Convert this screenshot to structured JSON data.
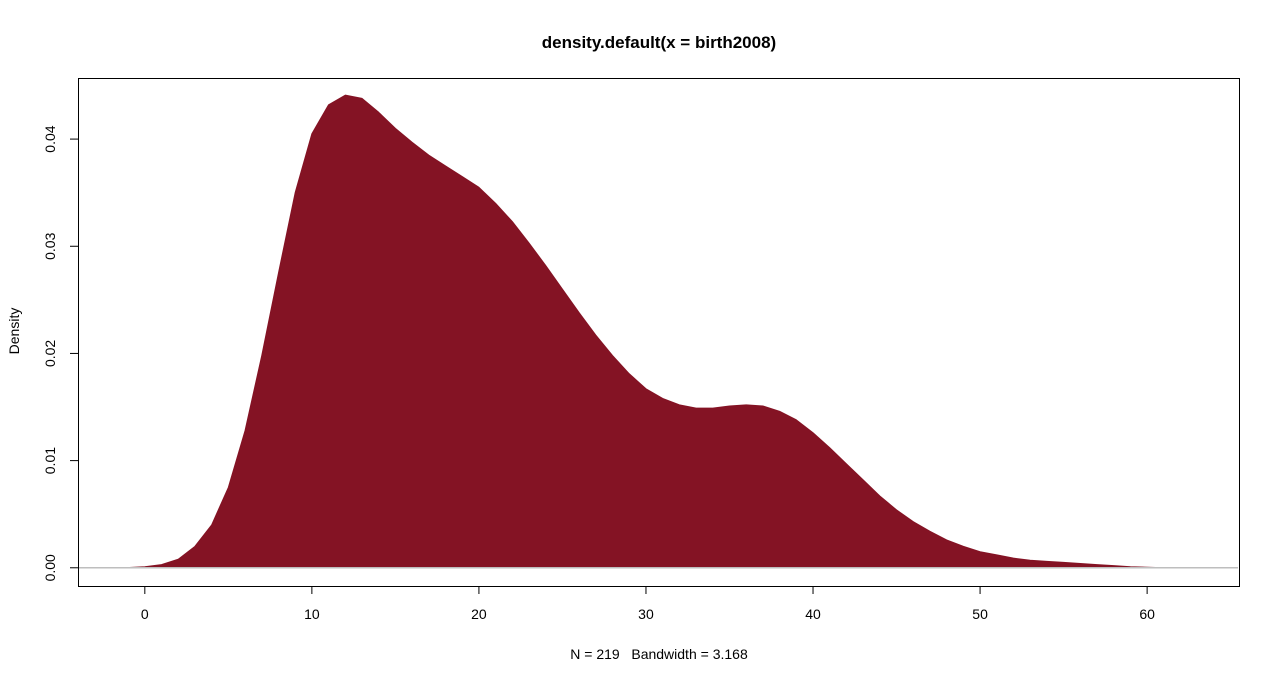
{
  "chart_data": {
    "type": "area",
    "title": "density.default(x = birth2008)",
    "xlabel": "N = 219   Bandwidth = 3.168",
    "ylabel": "Density",
    "xlim": [
      -4,
      65.5
    ],
    "ylim": [
      -0.0017,
      0.0457
    ],
    "x_ticks": [
      "0",
      "10",
      "20",
      "30",
      "40",
      "50",
      "60"
    ],
    "x_tick_values": [
      0,
      10,
      20,
      30,
      40,
      50,
      60
    ],
    "y_ticks": [
      "0.00",
      "0.01",
      "0.02",
      "0.03",
      "0.04"
    ],
    "y_tick_values": [
      0,
      0.01,
      0.02,
      0.03,
      0.04
    ],
    "series": [
      {
        "color": "#841324",
        "x": [
          -1.3,
          0,
          1,
          2,
          3,
          4,
          5,
          6,
          7,
          8,
          9,
          10,
          11,
          12,
          13,
          14,
          15,
          16,
          17,
          18,
          19,
          20,
          21,
          22,
          23,
          24,
          25,
          26,
          27,
          28,
          29,
          30,
          31,
          32,
          33,
          34,
          35,
          36,
          37,
          38,
          39,
          40,
          41,
          42,
          43,
          44,
          45,
          46,
          47,
          48,
          49,
          50,
          51,
          52,
          53,
          54,
          55,
          56,
          57,
          58,
          59,
          60,
          61
        ],
        "y": [
          0,
          0.0001,
          0.0003,
          0.0008,
          0.002,
          0.004,
          0.0075,
          0.0128,
          0.0198,
          0.0275,
          0.035,
          0.0405,
          0.0432,
          0.0441,
          0.0438,
          0.0425,
          0.041,
          0.0397,
          0.0385,
          0.0375,
          0.0365,
          0.0355,
          0.034,
          0.0323,
          0.0303,
          0.0282,
          0.026,
          0.0238,
          0.0217,
          0.0198,
          0.0181,
          0.0167,
          0.0158,
          0.0152,
          0.0149,
          0.0149,
          0.0151,
          0.0152,
          0.0151,
          0.0146,
          0.0138,
          0.0126,
          0.0112,
          0.0097,
          0.0082,
          0.0067,
          0.0054,
          0.0043,
          0.0034,
          0.0026,
          0.002,
          0.0015,
          0.0012,
          0.0009,
          0.0007,
          0.0006,
          0.0005,
          0.0004,
          0.0003,
          0.0002,
          0.0001,
          5e-05,
          0
        ]
      }
    ],
    "zero_line_color": "#bebebe",
    "grid": false
  }
}
